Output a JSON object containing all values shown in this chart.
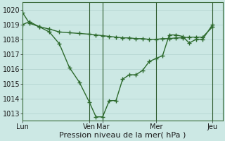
{
  "xlabel": "Pression niveau de la mer( hPa )",
  "bg_color": "#cce8e4",
  "grid_color": "#b8d8d4",
  "line_color": "#2d6a2d",
  "ylim": [
    1012.5,
    1020.5
  ],
  "yticks": [
    1013,
    1014,
    1015,
    1016,
    1017,
    1018,
    1019,
    1020
  ],
  "xlim": [
    0,
    60
  ],
  "day_labels": [
    "Lun",
    "Ven",
    "Mar",
    "Mer",
    "Jeu"
  ],
  "day_tick_positions": [
    0,
    20,
    24,
    40,
    57
  ],
  "day_vline_positions": [
    20,
    24,
    40,
    57
  ],
  "series1_x": [
    0,
    2,
    5,
    8,
    11,
    14,
    17,
    20,
    22,
    24,
    26,
    28,
    30,
    32,
    34,
    36,
    38,
    40,
    42,
    44,
    46,
    48,
    50,
    52,
    54,
    57
  ],
  "series1_y": [
    1019.8,
    1019.1,
    1018.85,
    1018.5,
    1017.7,
    1016.1,
    1015.1,
    1013.75,
    1012.75,
    1012.75,
    1013.85,
    1013.85,
    1015.3,
    1015.6,
    1015.6,
    1015.9,
    1016.5,
    1016.7,
    1016.9,
    1018.3,
    1018.3,
    1018.2,
    1017.75,
    1018.0,
    1018.0,
    1019.0
  ],
  "series2_x": [
    0,
    2,
    5,
    8,
    11,
    14,
    17,
    20,
    22,
    24,
    26,
    28,
    30,
    32,
    34,
    36,
    38,
    40,
    42,
    44,
    46,
    48,
    50,
    52,
    54,
    57
  ],
  "series2_y": [
    1019.0,
    1019.2,
    1018.85,
    1018.7,
    1018.5,
    1018.45,
    1018.4,
    1018.35,
    1018.3,
    1018.25,
    1018.2,
    1018.15,
    1018.1,
    1018.1,
    1018.05,
    1018.05,
    1018.0,
    1018.0,
    1018.05,
    1018.05,
    1018.1,
    1018.1,
    1018.15,
    1018.15,
    1018.15,
    1018.85
  ]
}
